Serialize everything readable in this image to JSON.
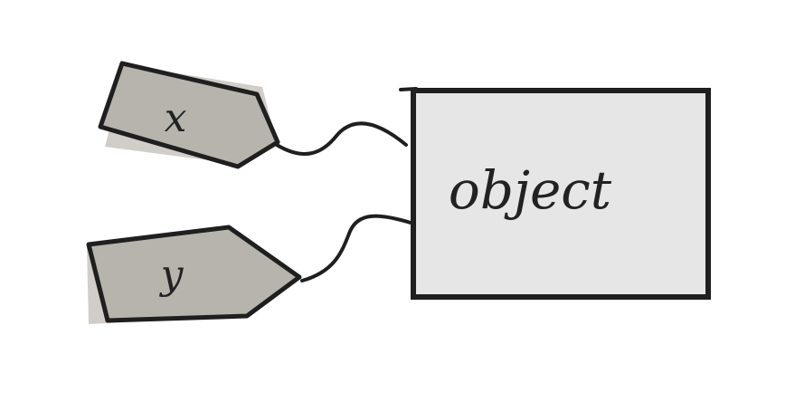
{
  "labels": {
    "tag_x": "x",
    "tag_y": "y",
    "object": "object"
  },
  "colors": {
    "background": "#ffffff",
    "tag_fill": "#b7b4ad",
    "tag_shadow": "#c9c5bf",
    "object_fill": "#e6e6e6",
    "stroke": "#1f1f1f"
  }
}
